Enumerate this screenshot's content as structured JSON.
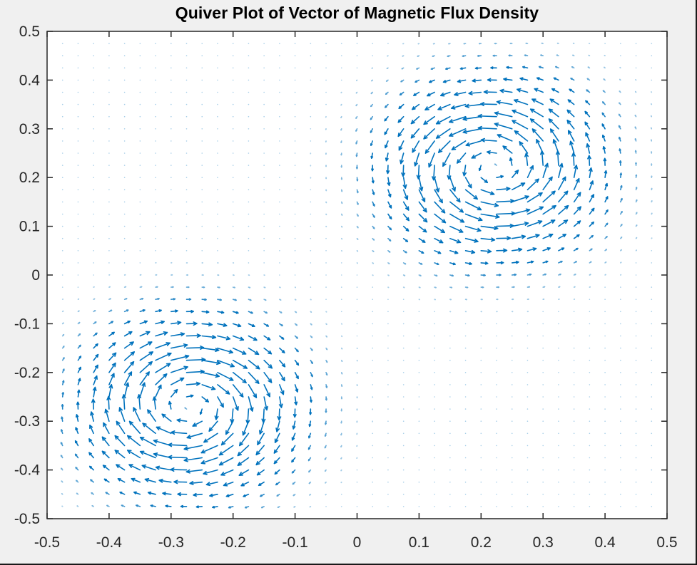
{
  "window": {
    "background": "#f0f0f0"
  },
  "chart_data": {
    "type": "quiver",
    "title": "Quiver Plot of Vector of Magnetic Flux Density",
    "xlabel": "",
    "ylabel": "",
    "xlim": [
      -0.5,
      0.5
    ],
    "ylim": [
      -0.5,
      0.5
    ],
    "xticks": [
      -0.5,
      -0.4,
      -0.3,
      -0.2,
      -0.1,
      0,
      0.1,
      0.2,
      0.3,
      0.4,
      0.5
    ],
    "xtick_labels": [
      "-0.5",
      "-0.4",
      "-0.3",
      "-0.2",
      "-0.1",
      "0",
      "0.1",
      "0.2",
      "0.3",
      "0.4",
      "0.5"
    ],
    "yticks": [
      0.5,
      0.4,
      0.3,
      0.2,
      0.1,
      0,
      -0.1,
      -0.2,
      -0.3,
      -0.4,
      -0.5
    ],
    "ytick_labels": [
      "0.5",
      "0.4",
      "0.3",
      "0.2",
      "0.1",
      "0",
      "-0.1",
      "-0.2",
      "-0.3",
      "-0.4",
      "-0.5"
    ],
    "grid": false,
    "legend": null,
    "arrow_color": "#0072bd",
    "sample_grid": {
      "start": -0.475,
      "step": 0.025,
      "count": 39
    },
    "vortices": [
      {
        "center": [
          0.22,
          0.22
        ],
        "rotation": "counterclockwise",
        "strength": 1.0,
        "width": 0.13
      },
      {
        "center": [
          -0.27,
          -0.27
        ],
        "rotation": "clockwise",
        "strength": -1.0,
        "width": 0.13
      }
    ],
    "max_arrow_length_data_units": 0.03,
    "notes": "Two counter-rotating vortices; field strongest on ring ~0.1 from each center, diagonal flow toward lower-right between them, decaying to near zero in upper-left and lower-right corners."
  }
}
